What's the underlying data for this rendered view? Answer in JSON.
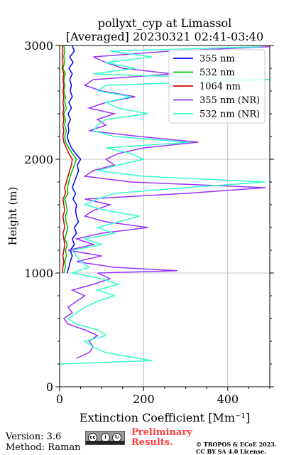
{
  "chart_data": {
    "type": "line",
    "title": "pollyxt_cyp at Limassol",
    "subtitle": "[Averaged] 20230321 02:41-03:40",
    "xlabel": "Extinction Coefficient [Mm⁻¹]",
    "ylabel": "Height (m)",
    "xlim": [
      0,
      500
    ],
    "ylim": [
      0,
      3000
    ],
    "xticks": [
      0,
      200,
      400
    ],
    "yticks": [
      0,
      1000,
      2000,
      3000
    ],
    "grid": true,
    "legend_position": "top-right",
    "series": [
      {
        "name": "355 nm",
        "color": "#0000ff",
        "points": [
          [
            18,
            1000
          ],
          [
            22,
            1050
          ],
          [
            25,
            1100
          ],
          [
            30,
            1150
          ],
          [
            25,
            1200
          ],
          [
            35,
            1250
          ],
          [
            30,
            1300
          ],
          [
            40,
            1350
          ],
          [
            35,
            1400
          ],
          [
            45,
            1450
          ],
          [
            40,
            1500
          ],
          [
            38,
            1550
          ],
          [
            40,
            1600
          ],
          [
            32,
            1650
          ],
          [
            38,
            1700
          ],
          [
            30,
            1750
          ],
          [
            35,
            1800
          ],
          [
            40,
            1850
          ],
          [
            45,
            1900
          ],
          [
            42,
            1950
          ],
          [
            50,
            2000
          ],
          [
            38,
            2050
          ],
          [
            28,
            2100
          ],
          [
            22,
            2150
          ],
          [
            18,
            2200
          ],
          [
            22,
            2250
          ],
          [
            20,
            2300
          ],
          [
            26,
            2350
          ],
          [
            20,
            2400
          ],
          [
            28,
            2450
          ],
          [
            22,
            2500
          ],
          [
            30,
            2550
          ],
          [
            25,
            2600
          ],
          [
            28,
            2650
          ],
          [
            24,
            2700
          ],
          [
            30,
            2750
          ],
          [
            22,
            2800
          ],
          [
            32,
            2850
          ],
          [
            24,
            2900
          ],
          [
            35,
            2950
          ],
          [
            30,
            3000
          ]
        ]
      },
      {
        "name": "532 nm",
        "color": "#00c000",
        "points": [
          [
            10,
            1000
          ],
          [
            14,
            1050
          ],
          [
            12,
            1100
          ],
          [
            16,
            1150
          ],
          [
            14,
            1200
          ],
          [
            18,
            1250
          ],
          [
            12,
            1300
          ],
          [
            16,
            1350
          ],
          [
            20,
            1400
          ],
          [
            15,
            1450
          ],
          [
            14,
            1500
          ],
          [
            18,
            1550
          ],
          [
            16,
            1600
          ],
          [
            12,
            1650
          ],
          [
            20,
            1700
          ],
          [
            18,
            1750
          ],
          [
            22,
            1800
          ],
          [
            25,
            1850
          ],
          [
            30,
            1900
          ],
          [
            35,
            1950
          ],
          [
            40,
            2000
          ],
          [
            30,
            2050
          ],
          [
            22,
            2100
          ],
          [
            14,
            2150
          ],
          [
            12,
            2200
          ],
          [
            16,
            2250
          ],
          [
            12,
            2300
          ],
          [
            14,
            2350
          ],
          [
            10,
            2400
          ],
          [
            16,
            2450
          ],
          [
            12,
            2500
          ],
          [
            14,
            2550
          ],
          [
            10,
            2600
          ],
          [
            12,
            2650
          ],
          [
            10,
            2700
          ],
          [
            14,
            2750
          ],
          [
            8,
            2800
          ],
          [
            12,
            2850
          ],
          [
            10,
            2900
          ],
          [
            12,
            2950
          ],
          [
            10,
            3000
          ]
        ]
      },
      {
        "name": "1064 nm",
        "color": "#d00000",
        "points": [
          [
            6,
            1000
          ],
          [
            8,
            1050
          ],
          [
            10,
            1100
          ],
          [
            8,
            1150
          ],
          [
            10,
            1200
          ],
          [
            12,
            1250
          ],
          [
            10,
            1300
          ],
          [
            8,
            1350
          ],
          [
            12,
            1400
          ],
          [
            10,
            1450
          ],
          [
            8,
            1500
          ],
          [
            12,
            1550
          ],
          [
            10,
            1600
          ],
          [
            8,
            1650
          ],
          [
            14,
            1700
          ],
          [
            12,
            1750
          ],
          [
            16,
            1800
          ],
          [
            20,
            1850
          ],
          [
            24,
            1900
          ],
          [
            28,
            1950
          ],
          [
            30,
            2000
          ],
          [
            22,
            2050
          ],
          [
            16,
            2100
          ],
          [
            10,
            2150
          ],
          [
            8,
            2200
          ],
          [
            10,
            2250
          ],
          [
            8,
            2300
          ],
          [
            10,
            2350
          ],
          [
            8,
            2400
          ],
          [
            10,
            2450
          ],
          [
            8,
            2500
          ],
          [
            10,
            2550
          ],
          [
            8,
            2600
          ],
          [
            10,
            2650
          ],
          [
            8,
            2700
          ],
          [
            10,
            2750
          ],
          [
            6,
            2800
          ],
          [
            8,
            2850
          ],
          [
            6,
            2900
          ],
          [
            8,
            2950
          ],
          [
            6,
            3000
          ]
        ]
      },
      {
        "name": "355 nm (NR)",
        "color": "#9933ff",
        "points": [
          [
            40,
            250
          ],
          [
            70,
            300
          ],
          [
            80,
            350
          ],
          [
            70,
            400
          ],
          [
            90,
            450
          ],
          [
            60,
            500
          ],
          [
            20,
            550
          ],
          [
            10,
            600
          ],
          [
            30,
            650
          ],
          [
            20,
            700
          ],
          [
            40,
            750
          ],
          [
            60,
            800
          ],
          [
            30,
            850
          ],
          [
            80,
            900
          ],
          [
            120,
            950
          ],
          [
            90,
            1000
          ],
          [
            280,
            1020
          ],
          [
            130,
            1050
          ],
          [
            40,
            1100
          ],
          [
            100,
            1150
          ],
          [
            20,
            1200
          ],
          [
            80,
            1250
          ],
          [
            40,
            1300
          ],
          [
            100,
            1350
          ],
          [
            210,
            1400
          ],
          [
            110,
            1450
          ],
          [
            60,
            1500
          ],
          [
            80,
            1550
          ],
          [
            120,
            1600
          ],
          [
            60,
            1650
          ],
          [
            300,
            1700
          ],
          [
            490,
            1750
          ],
          [
            170,
            1800
          ],
          [
            60,
            1850
          ],
          [
            80,
            1900
          ],
          [
            130,
            1950
          ],
          [
            110,
            2000
          ],
          [
            140,
            2050
          ],
          [
            200,
            2100
          ],
          [
            330,
            2150
          ],
          [
            190,
            2200
          ],
          [
            70,
            2250
          ],
          [
            110,
            2300
          ],
          [
            90,
            2350
          ],
          [
            130,
            2400
          ],
          [
            70,
            2450
          ],
          [
            110,
            2500
          ],
          [
            180,
            2550
          ],
          [
            100,
            2600
          ],
          [
            60,
            2650
          ],
          [
            80,
            2700
          ],
          [
            270,
            2750
          ],
          [
            150,
            2800
          ],
          [
            110,
            2850
          ],
          [
            80,
            2900
          ],
          [
            260,
            2950
          ],
          [
            500,
            2990
          ]
        ]
      },
      {
        "name": "532 nm (NR)",
        "color": "#33ffcc",
        "points": [
          [
            0,
            200
          ],
          [
            220,
            230
          ],
          [
            110,
            300
          ],
          [
            80,
            350
          ],
          [
            60,
            400
          ],
          [
            110,
            450
          ],
          [
            90,
            500
          ],
          [
            40,
            550
          ],
          [
            20,
            600
          ],
          [
            40,
            650
          ],
          [
            60,
            700
          ],
          [
            90,
            750
          ],
          [
            130,
            800
          ],
          [
            90,
            850
          ],
          [
            140,
            900
          ],
          [
            100,
            950
          ],
          [
            30,
            1000
          ],
          [
            70,
            1050
          ],
          [
            50,
            1100
          ],
          [
            40,
            1150
          ],
          [
            30,
            1200
          ],
          [
            100,
            1250
          ],
          [
            60,
            1300
          ],
          [
            130,
            1350
          ],
          [
            90,
            1400
          ],
          [
            140,
            1450
          ],
          [
            190,
            1500
          ],
          [
            110,
            1550
          ],
          [
            60,
            1600
          ],
          [
            90,
            1650
          ],
          [
            130,
            1700
          ],
          [
            300,
            1750
          ],
          [
            490,
            1800
          ],
          [
            200,
            1850
          ],
          [
            90,
            1900
          ],
          [
            140,
            1950
          ],
          [
            200,
            2000
          ],
          [
            170,
            2050
          ],
          [
            110,
            2100
          ],
          [
            310,
            2150
          ],
          [
            130,
            2200
          ],
          [
            80,
            2250
          ],
          [
            90,
            2300
          ],
          [
            110,
            2350
          ],
          [
            210,
            2400
          ],
          [
            140,
            2450
          ],
          [
            110,
            2500
          ],
          [
            170,
            2550
          ],
          [
            90,
            2600
          ],
          [
            110,
            2650
          ],
          [
            500,
            2700
          ],
          [
            80,
            2750
          ],
          [
            180,
            2800
          ],
          [
            110,
            2850
          ],
          [
            220,
            2900
          ],
          [
            120,
            2950
          ],
          [
            480,
            2990
          ]
        ]
      }
    ]
  },
  "footer": {
    "version": "Version: 3.6",
    "method": "Method: Raman",
    "preliminary_line1": "Preliminary",
    "preliminary_line2": "Results.",
    "copyright_line1": "© TROPOS & ECoE 2023.",
    "copyright_line2": "CC BY SA 4.0 License."
  }
}
